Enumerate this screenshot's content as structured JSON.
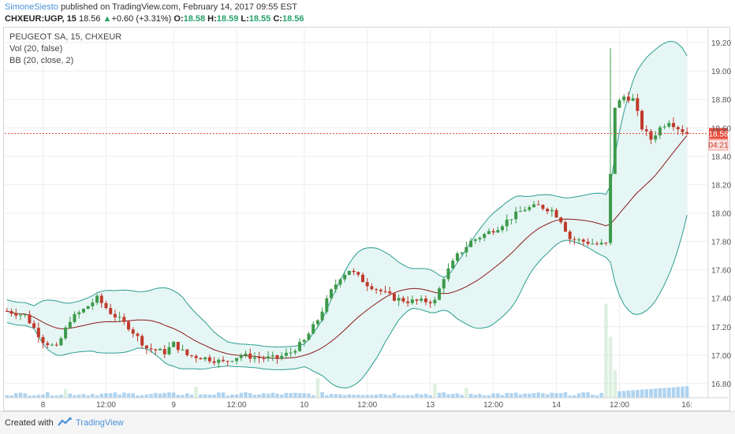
{
  "header": {
    "author": "SimoneSiesto",
    "published_text": "published on TradingView.com, February 14, 2017 09:55 EST"
  },
  "quote": {
    "symbol": "CHXEUR:UGP, 15",
    "last": "18.56",
    "arrow": "▲",
    "change": "+0.60 (+3.31%)",
    "o_label": "O:",
    "o": "18.58",
    "h_label": "H:",
    "h": "18.59",
    "l_label": "L:",
    "l": "18.55",
    "c_label": "C:",
    "c": "18.56"
  },
  "legend": {
    "line1": "PEUGEOT SA, 15, CHXEUR",
    "line2": "Vol (20, false)",
    "line3": "BB (20, close, 2)"
  },
  "footer": {
    "created_with": "Created with",
    "brand": "TradingView"
  },
  "colors": {
    "up": "#3d9a4a",
    "down": "#c0392b",
    "bb_band": "#2a9d8f",
    "bb_fill": "#e6f6f5",
    "bb_mid": "#8b1a1a",
    "price_line": "#e74c3c",
    "vol_blue": "#7ab8e8"
  },
  "chart_data": {
    "type": "candlestick",
    "title": "PEUGEOT SA, 15, CHXEUR",
    "y_ticks": [
      "19.20",
      "19.00",
      "18.80",
      "18.60",
      "18.40",
      "18.20",
      "18.00",
      "17.80",
      "17.60",
      "17.40",
      "17.20",
      "17.00",
      "16.80"
    ],
    "ylim": [
      16.7,
      19.3
    ],
    "x_ticks": [
      "8",
      "12:00",
      "9",
      "12:00",
      "10",
      "12:00",
      "13",
      "12:00",
      "14",
      "12:00",
      "16:"
    ],
    "x_tick_index": [
      8,
      22,
      37,
      51,
      66,
      80,
      94,
      108,
      122,
      136,
      151
    ],
    "last_price": "18.56",
    "countdown": "04:21",
    "n_bars": 152,
    "anchors": [
      [
        0,
        17.31
      ],
      [
        4,
        17.28
      ],
      [
        8,
        17.1
      ],
      [
        11,
        17.05
      ],
      [
        14,
        17.25
      ],
      [
        17,
        17.32
      ],
      [
        20,
        17.4
      ],
      [
        23,
        17.3
      ],
      [
        27,
        17.2
      ],
      [
        31,
        17.05
      ],
      [
        35,
        17.02
      ],
      [
        37,
        17.08
      ],
      [
        40,
        17.0
      ],
      [
        44,
        16.98
      ],
      [
        48,
        16.95
      ],
      [
        52,
        17.0
      ],
      [
        56,
        16.98
      ],
      [
        60,
        16.98
      ],
      [
        63,
        17.02
      ],
      [
        66,
        17.1
      ],
      [
        69,
        17.25
      ],
      [
        72,
        17.45
      ],
      [
        74,
        17.55
      ],
      [
        76,
        17.6
      ],
      [
        78,
        17.55
      ],
      [
        80,
        17.5
      ],
      [
        83,
        17.45
      ],
      [
        86,
        17.4
      ],
      [
        89,
        17.38
      ],
      [
        92,
        17.38
      ],
      [
        95,
        17.38
      ],
      [
        97,
        17.55
      ],
      [
        100,
        17.7
      ],
      [
        103,
        17.8
      ],
      [
        106,
        17.85
      ],
      [
        109,
        17.9
      ],
      [
        112,
        17.97
      ],
      [
        115,
        18.03
      ],
      [
        118,
        18.05
      ],
      [
        121,
        18.02
      ],
      [
        123,
        17.95
      ],
      [
        125,
        17.82
      ],
      [
        128,
        17.8
      ],
      [
        131,
        17.78
      ],
      [
        133,
        17.78
      ],
      [
        135,
        18.75
      ],
      [
        137,
        18.82
      ],
      [
        139,
        18.8
      ],
      [
        141,
        18.6
      ],
      [
        143,
        18.52
      ],
      [
        145,
        18.6
      ],
      [
        147,
        18.65
      ],
      [
        149,
        18.6
      ],
      [
        151,
        18.56
      ]
    ],
    "volume_spikes": [
      [
        133,
        0.85
      ],
      [
        134,
        0.55
      ],
      [
        135,
        0.25
      ],
      [
        69,
        0.18
      ],
      [
        95,
        0.12
      ],
      [
        42,
        0.1
      ],
      [
        13,
        0.08
      ],
      [
        102,
        0.09
      ]
    ]
  }
}
